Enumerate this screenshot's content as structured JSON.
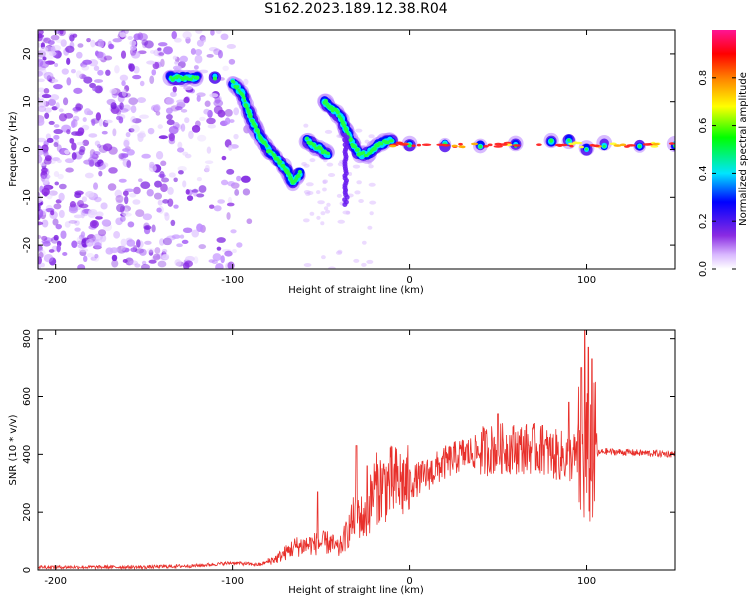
{
  "title": "S162.2023.189.12.38.R04",
  "chart_data": [
    {
      "type": "heatmap",
      "xlabel": "Height of straight line (km)",
      "ylabel": "Frequency (Hz)",
      "xlim": [
        -210,
        150
      ],
      "ylim": [
        -25,
        25
      ],
      "xticks": [
        -200,
        -100,
        0,
        100
      ],
      "yticks": [
        -20,
        -10,
        0,
        10,
        20
      ],
      "colorbar": {
        "label": "Normalized spectral amplitude",
        "range": [
          0.0,
          1.0
        ],
        "ticks": [
          0.0,
          0.2,
          0.4,
          0.6,
          0.8
        ]
      },
      "ridge": [
        [
          -135,
          15
        ],
        [
          -127,
          15
        ],
        [
          -120,
          15
        ],
        [
          -110,
          15
        ],
        [
          -100,
          14
        ],
        [
          -95,
          12
        ],
        [
          -90,
          7
        ],
        [
          -85,
          3
        ],
        [
          -80,
          0
        ],
        [
          -75,
          -2
        ],
        [
          -70,
          -4
        ],
        [
          -66,
          -7
        ],
        [
          -62,
          -5
        ],
        [
          -58,
          2
        ],
        [
          -55,
          1
        ],
        [
          -50,
          0
        ],
        [
          -46,
          -1
        ],
        [
          -48,
          10
        ],
        [
          -45,
          9
        ],
        [
          -42,
          8
        ],
        [
          -39,
          7
        ],
        [
          -36,
          4
        ],
        [
          -32,
          1
        ],
        [
          -28,
          -1
        ],
        [
          -24,
          -1
        ],
        [
          -18,
          1
        ],
        [
          -10,
          2
        ],
        [
          0,
          1
        ],
        [
          20,
          1
        ],
        [
          40,
          1
        ],
        [
          60,
          1
        ],
        [
          80,
          2
        ],
        [
          90,
          2
        ],
        [
          100,
          0
        ],
        [
          110,
          1
        ],
        [
          130,
          1
        ],
        [
          150,
          1
        ]
      ]
    },
    {
      "type": "line",
      "xlabel": "Height of straight line (km)",
      "ylabel": "SNR (10 * v/v)",
      "xlim": [
        -210,
        150
      ],
      "ylim": [
        0,
        830
      ],
      "xticks": [
        -200,
        -100,
        0,
        100
      ],
      "yticks": [
        0,
        200,
        400,
        600,
        800
      ],
      "color": "#e8302b",
      "envelope": [
        [
          -210,
          10
        ],
        [
          -150,
          10
        ],
        [
          -120,
          15
        ],
        [
          -100,
          25
        ],
        [
          -85,
          18
        ],
        [
          -75,
          40
        ],
        [
          -65,
          80
        ],
        [
          -55,
          90
        ],
        [
          -45,
          95
        ],
        [
          -40,
          70
        ],
        [
          -35,
          130
        ],
        [
          -30,
          200
        ],
        [
          -25,
          170
        ],
        [
          -20,
          280
        ],
        [
          -10,
          300
        ],
        [
          0,
          300
        ],
        [
          10,
          330
        ],
        [
          20,
          370
        ],
        [
          30,
          400
        ],
        [
          40,
          410
        ],
        [
          50,
          420
        ],
        [
          60,
          420
        ],
        [
          70,
          420
        ],
        [
          80,
          400
        ],
        [
          90,
          390
        ],
        [
          100,
          390
        ],
        [
          110,
          410
        ],
        [
          130,
          405
        ],
        [
          150,
          400
        ]
      ],
      "peaks": [
        [
          -30,
          430
        ],
        [
          -24,
          360
        ],
        [
          -52,
          270
        ],
        [
          50,
          540
        ],
        [
          75,
          500
        ],
        [
          90,
          580
        ],
        [
          97,
          700
        ],
        [
          99,
          830
        ],
        [
          101,
          770
        ],
        [
          103,
          730
        ]
      ]
    }
  ]
}
